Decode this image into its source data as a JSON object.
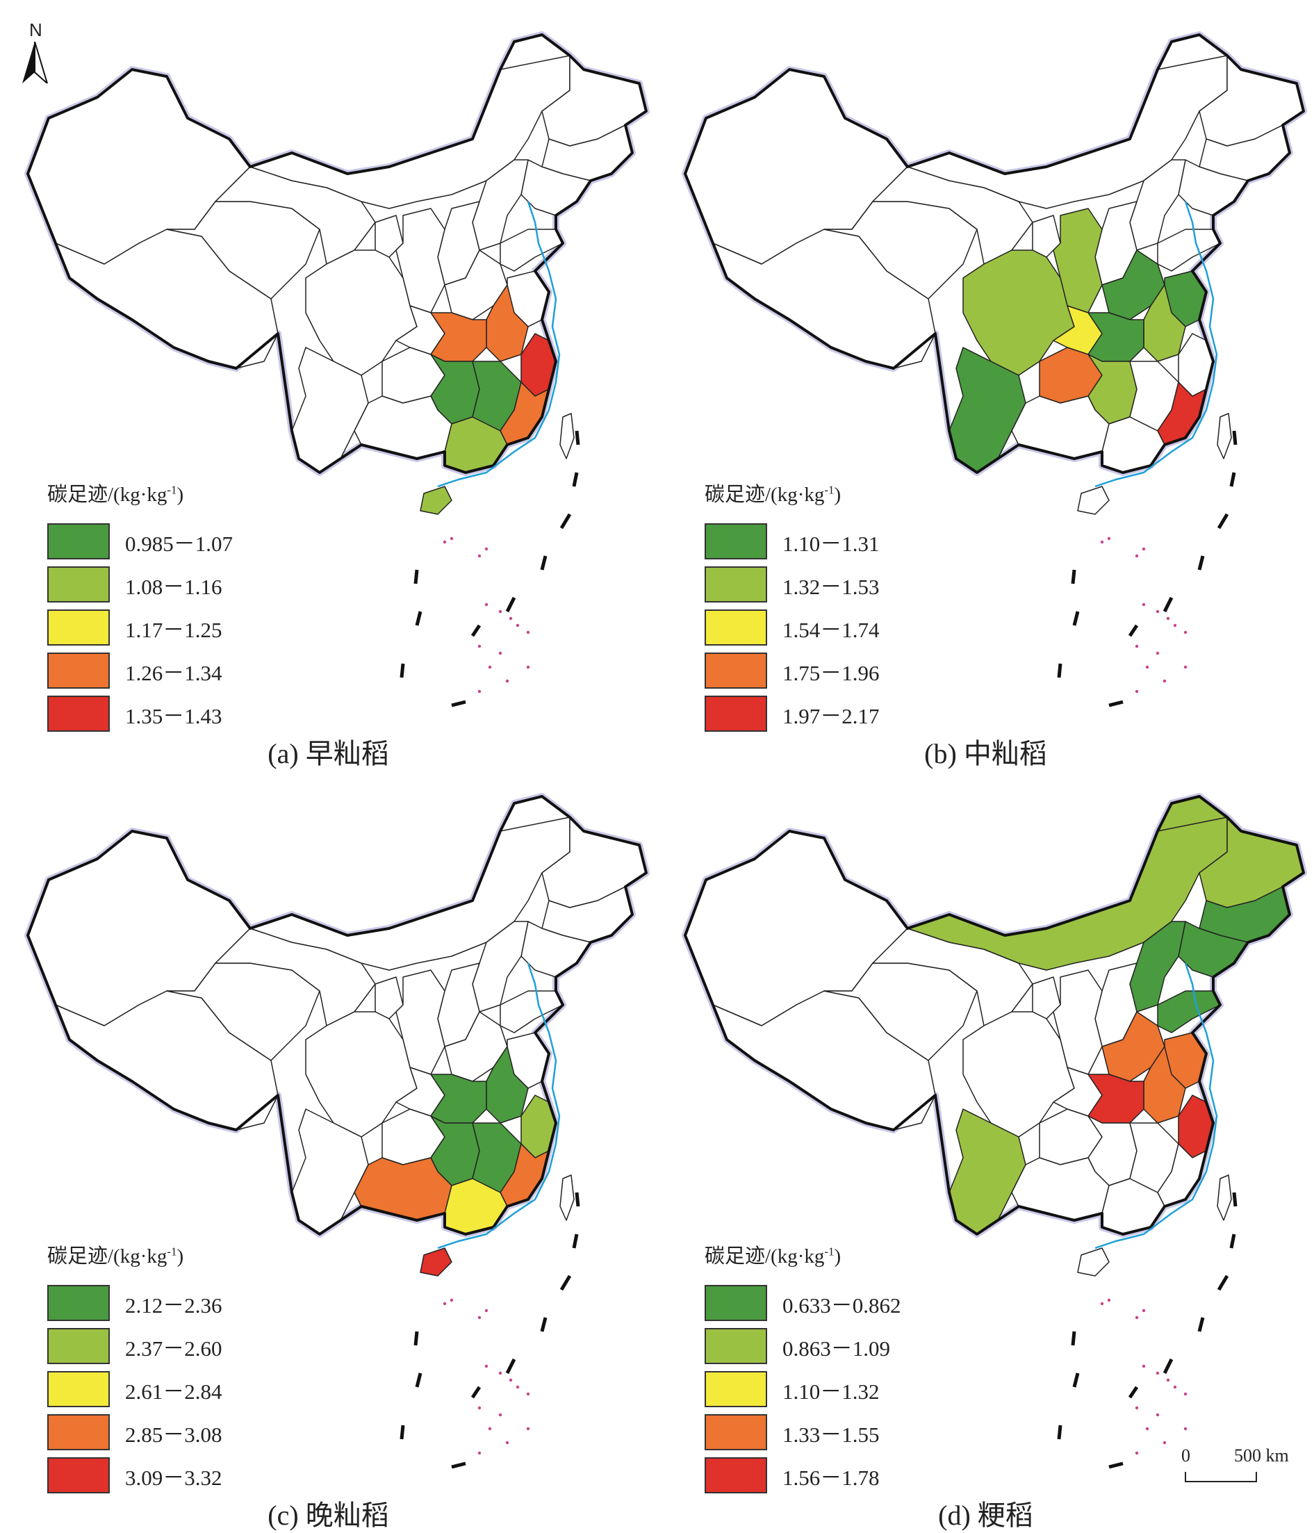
{
  "north_label": "N",
  "legend_title_prefix": "碳足迹/(kg·kg",
  "legend_title_sup": "-1",
  "legend_title_suffix": ")",
  "scale_zero": "0",
  "scale_label": "500 km",
  "colors": {
    "c1": "#4a9a3f",
    "c2": "#9bc143",
    "c3": "#f4ea3a",
    "c4": "#ee7431",
    "c5": "#e0312a",
    "none": "#ffffff"
  },
  "panels": [
    {
      "caption": "(a) 早籼稻",
      "legend": [
        "0.985－1.07",
        "1.08－1.16",
        "1.17－1.25",
        "1.26－1.34",
        "1.35－1.43"
      ],
      "provinces": {
        "Hubei": "c4",
        "Anhui": "c4",
        "Zhejiang": "c5",
        "Hunan": "c1",
        "Jiangxi": "c1",
        "Fujian": "c4",
        "Guangdong": "c2",
        "Hainan": "c2"
      }
    },
    {
      "caption": "(b) 中籼稻",
      "legend": [
        "1.10－1.31",
        "1.32－1.53",
        "1.54－1.74",
        "1.75－1.96",
        "1.97－2.17"
      ],
      "provinces": {
        "Shaanxi": "c2",
        "Sichuan": "c2",
        "Chongqing": "c3",
        "Henan": "c1",
        "Hubei": "c1",
        "Anhui": "c2",
        "Jiangsu": "c1",
        "Yunnan": "c1",
        "Guizhou": "c4",
        "Hunan": "c2",
        "Fujian": "c5"
      }
    },
    {
      "caption": "(c) 晚籼稻",
      "legend": [
        "2.12－2.36",
        "2.37－2.60",
        "2.61－2.84",
        "2.85－3.08",
        "3.09－3.32"
      ],
      "provinces": {
        "Hubei": "c1",
        "Anhui": "c1",
        "Hunan": "c1",
        "Jiangxi": "c1",
        "Zhejiang": "c2",
        "Fujian": "c4",
        "Guangxi": "c4",
        "Guangdong": "c3",
        "Hainan": "c5"
      }
    },
    {
      "caption": "(d) 粳稻",
      "legend": [
        "0.633－0.862",
        "0.863－1.09",
        "1.10－1.32",
        "1.33－1.55",
        "1.56－1.78"
      ],
      "provinces": {
        "Heilongjiang": "c2",
        "Jilin": "c1",
        "Liaoning": "c1",
        "InnerMongolia": "c2",
        "Hebei": "c1",
        "Shandong": "c1",
        "Henan": "c4",
        "Anhui": "c4",
        "Jiangsu": "c4",
        "Hubei": "c5",
        "Zhejiang": "c5",
        "Yunnan": "c2"
      }
    }
  ]
}
